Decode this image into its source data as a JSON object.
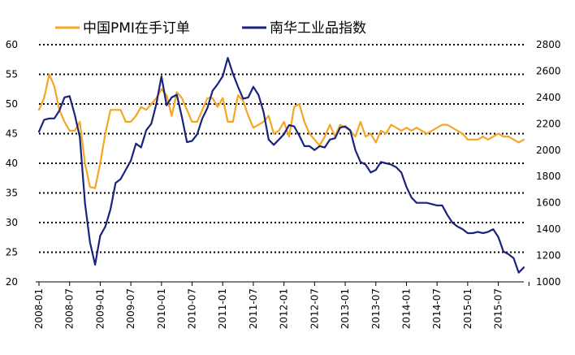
{
  "chart_data": {
    "type": "line",
    "legend_position": "top",
    "grid": "horizontal-dotted",
    "x_axis": {
      "start": "2008-01",
      "end": "2015-12",
      "tick_labels": [
        "2008-01",
        "2008-07",
        "2009-01",
        "2009-07",
        "2010-01",
        "2010-07",
        "2011-01",
        "2011-07",
        "2012-01",
        "2012-07",
        "2013-01",
        "2013-07",
        "2014-01",
        "2014-07",
        "2015-01",
        "2015-07"
      ]
    },
    "y_left": {
      "min": 20,
      "max": 60,
      "ticks": [
        20,
        25,
        30,
        35,
        40,
        45,
        50,
        55,
        60
      ]
    },
    "y_right": {
      "min": 1000,
      "max": 2800,
      "ticks": [
        1000,
        1200,
        1400,
        1600,
        1800,
        2000,
        2200,
        2400,
        2600,
        2800
      ]
    },
    "series": [
      {
        "name": "中国PMI在手订单",
        "axis": "left",
        "color": "#F5A623",
        "points": [
          [
            "2008-01",
            49
          ],
          [
            "2008-02",
            51
          ],
          [
            "2008-03",
            55
          ],
          [
            "2008-04",
            53
          ],
          [
            "2008-05",
            49
          ],
          [
            "2008-06",
            47
          ],
          [
            "2008-07",
            45.5
          ],
          [
            "2008-08",
            45.5
          ],
          [
            "2008-09",
            47
          ],
          [
            "2008-10",
            40
          ],
          [
            "2008-11",
            36
          ],
          [
            "2008-12",
            35.8
          ],
          [
            "2009-01",
            40
          ],
          [
            "2009-02",
            45
          ],
          [
            "2009-03",
            49
          ],
          [
            "2009-04",
            49
          ],
          [
            "2009-05",
            49
          ],
          [
            "2009-06",
            47
          ],
          [
            "2009-07",
            47
          ],
          [
            "2009-08",
            48
          ],
          [
            "2009-09",
            49.5
          ],
          [
            "2009-10",
            49
          ],
          [
            "2009-11",
            50
          ],
          [
            "2009-12",
            51
          ],
          [
            "2010-01",
            52.5
          ],
          [
            "2010-02",
            51.5
          ],
          [
            "2010-03",
            48
          ],
          [
            "2010-04",
            52
          ],
          [
            "2010-05",
            51
          ],
          [
            "2010-06",
            49
          ],
          [
            "2010-07",
            47
          ],
          [
            "2010-08",
            47
          ],
          [
            "2010-09",
            49
          ],
          [
            "2010-10",
            51
          ],
          [
            "2010-11",
            51
          ],
          [
            "2010-12",
            49.5
          ],
          [
            "2011-01",
            51
          ],
          [
            "2011-02",
            47
          ],
          [
            "2011-03",
            47
          ],
          [
            "2011-04",
            51.5
          ],
          [
            "2011-05",
            50.5
          ],
          [
            "2011-06",
            48
          ],
          [
            "2011-07",
            46
          ],
          [
            "2011-08",
            46.5
          ],
          [
            "2011-09",
            47
          ],
          [
            "2011-10",
            48
          ],
          [
            "2011-11",
            45
          ],
          [
            "2011-12",
            45.5
          ],
          [
            "2012-01",
            47
          ],
          [
            "2012-02",
            44.5
          ],
          [
            "2012-03",
            49.5
          ],
          [
            "2012-04",
            50
          ],
          [
            "2012-05",
            47
          ],
          [
            "2012-06",
            45
          ],
          [
            "2012-07",
            44
          ],
          [
            "2012-08",
            43
          ],
          [
            "2012-09",
            44.5
          ],
          [
            "2012-10",
            46.5
          ],
          [
            "2012-11",
            44.5
          ],
          [
            "2012-12",
            46.5
          ],
          [
            "2013-01",
            46
          ],
          [
            "2013-02",
            45.5
          ],
          [
            "2013-03",
            44.5
          ],
          [
            "2013-04",
            47
          ],
          [
            "2013-05",
            44.5
          ],
          [
            "2013-06",
            45
          ],
          [
            "2013-07",
            43.5
          ],
          [
            "2013-08",
            45.5
          ],
          [
            "2013-09",
            45
          ],
          [
            "2013-10",
            46.5
          ],
          [
            "2013-11",
            46
          ],
          [
            "2013-12",
            45.5
          ],
          [
            "2014-01",
            46
          ],
          [
            "2014-02",
            45.5
          ],
          [
            "2014-03",
            46
          ],
          [
            "2014-04",
            45.5
          ],
          [
            "2014-05",
            45
          ],
          [
            "2014-06",
            45.5
          ],
          [
            "2014-07",
            46
          ],
          [
            "2014-08",
            46.5
          ],
          [
            "2014-09",
            46.5
          ],
          [
            "2014-10",
            46
          ],
          [
            "2014-11",
            45.5
          ],
          [
            "2014-12",
            45
          ],
          [
            "2015-01",
            44
          ],
          [
            "2015-02",
            44
          ],
          [
            "2015-03",
            44
          ],
          [
            "2015-04",
            44.5
          ],
          [
            "2015-05",
            44
          ],
          [
            "2015-06",
            44.5
          ],
          [
            "2015-07",
            45
          ],
          [
            "2015-08",
            44.5
          ],
          [
            "2015-09",
            44.5
          ],
          [
            "2015-10",
            44
          ],
          [
            "2015-11",
            43.5
          ],
          [
            "2015-12",
            44
          ]
        ]
      },
      {
        "name": "南华工业品指数",
        "axis": "right",
        "color": "#1A237E",
        "points": [
          [
            "2008-01",
            2140
          ],
          [
            "2008-02",
            2230
          ],
          [
            "2008-03",
            2240
          ],
          [
            "2008-04",
            2240
          ],
          [
            "2008-05",
            2300
          ],
          [
            "2008-06",
            2400
          ],
          [
            "2008-07",
            2410
          ],
          [
            "2008-08",
            2270
          ],
          [
            "2008-09",
            2100
          ],
          [
            "2008-10",
            1600
          ],
          [
            "2008-11",
            1300
          ],
          [
            "2008-12",
            1130
          ],
          [
            "2009-01",
            1350
          ],
          [
            "2009-02",
            1420
          ],
          [
            "2009-03",
            1550
          ],
          [
            "2009-04",
            1750
          ],
          [
            "2009-05",
            1780
          ],
          [
            "2009-06",
            1850
          ],
          [
            "2009-07",
            1920
          ],
          [
            "2009-08",
            2050
          ],
          [
            "2009-09",
            2020
          ],
          [
            "2009-10",
            2150
          ],
          [
            "2009-11",
            2200
          ],
          [
            "2009-12",
            2350
          ],
          [
            "2010-01",
            2560
          ],
          [
            "2010-02",
            2340
          ],
          [
            "2010-03",
            2400
          ],
          [
            "2010-04",
            2420
          ],
          [
            "2010-05",
            2250
          ],
          [
            "2010-06",
            2060
          ],
          [
            "2010-07",
            2070
          ],
          [
            "2010-08",
            2120
          ],
          [
            "2010-09",
            2240
          ],
          [
            "2010-10",
            2320
          ],
          [
            "2010-11",
            2450
          ],
          [
            "2010-12",
            2500
          ],
          [
            "2011-01",
            2560
          ],
          [
            "2011-02",
            2700
          ],
          [
            "2011-03",
            2580
          ],
          [
            "2011-04",
            2480
          ],
          [
            "2011-05",
            2390
          ],
          [
            "2011-06",
            2400
          ],
          [
            "2011-07",
            2480
          ],
          [
            "2011-08",
            2420
          ],
          [
            "2011-09",
            2290
          ],
          [
            "2011-10",
            2080
          ],
          [
            "2011-11",
            2040
          ],
          [
            "2011-12",
            2080
          ],
          [
            "2012-01",
            2120
          ],
          [
            "2012-02",
            2190
          ],
          [
            "2012-03",
            2180
          ],
          [
            "2012-04",
            2110
          ],
          [
            "2012-05",
            2030
          ],
          [
            "2012-06",
            2030
          ],
          [
            "2012-07",
            2000
          ],
          [
            "2012-08",
            2030
          ],
          [
            "2012-09",
            2020
          ],
          [
            "2012-10",
            2080
          ],
          [
            "2012-11",
            2090
          ],
          [
            "2012-12",
            2170
          ],
          [
            "2013-01",
            2180
          ],
          [
            "2013-02",
            2150
          ],
          [
            "2013-03",
            2000
          ],
          [
            "2013-04",
            1910
          ],
          [
            "2013-05",
            1890
          ],
          [
            "2013-06",
            1830
          ],
          [
            "2013-07",
            1850
          ],
          [
            "2013-08",
            1910
          ],
          [
            "2013-09",
            1900
          ],
          [
            "2013-10",
            1890
          ],
          [
            "2013-11",
            1870
          ],
          [
            "2013-12",
            1830
          ],
          [
            "2014-01",
            1720
          ],
          [
            "2014-02",
            1640
          ],
          [
            "2014-03",
            1600
          ],
          [
            "2014-04",
            1600
          ],
          [
            "2014-05",
            1600
          ],
          [
            "2014-06",
            1590
          ],
          [
            "2014-07",
            1580
          ],
          [
            "2014-08",
            1580
          ],
          [
            "2014-09",
            1510
          ],
          [
            "2014-10",
            1450
          ],
          [
            "2014-11",
            1420
          ],
          [
            "2014-12",
            1400
          ],
          [
            "2015-01",
            1370
          ],
          [
            "2015-02",
            1370
          ],
          [
            "2015-03",
            1380
          ],
          [
            "2015-04",
            1370
          ],
          [
            "2015-05",
            1380
          ],
          [
            "2015-06",
            1400
          ],
          [
            "2015-07",
            1340
          ],
          [
            "2015-08",
            1230
          ],
          [
            "2015-09",
            1210
          ],
          [
            "2015-10",
            1180
          ],
          [
            "2015-11",
            1070
          ],
          [
            "2015-12",
            1110
          ]
        ]
      }
    ]
  }
}
